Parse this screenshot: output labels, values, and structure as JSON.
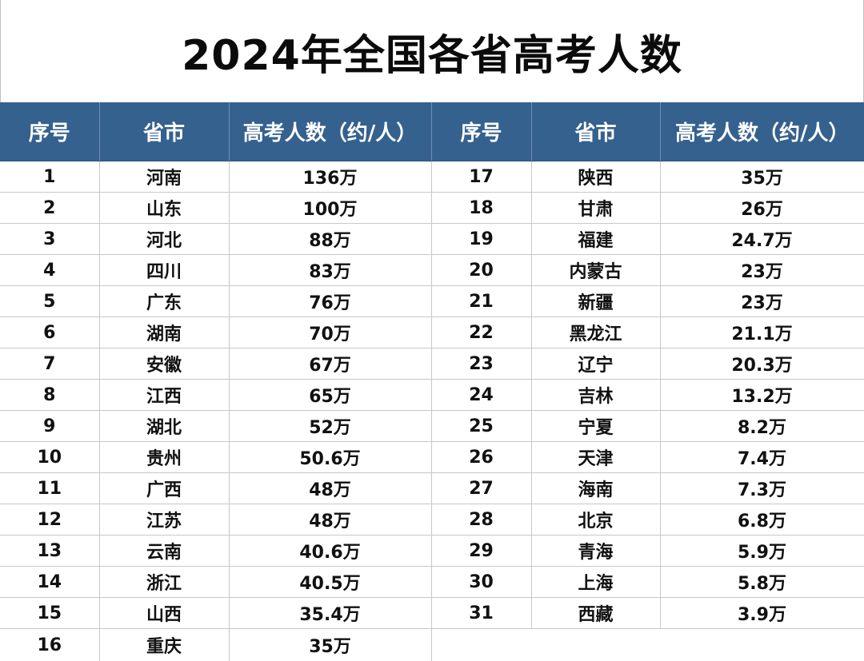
{
  "title": "2024年全国各省高考人数",
  "headers": [
    "序号",
    "省市",
    "高考人数（约/人）",
    "序号",
    "省市",
    "高考人数（约/人）"
  ],
  "rows": [
    {
      "no": "1",
      "province": "河南",
      "count": "136万"
    },
    {
      "no": "2",
      "province": "山东",
      "count": "100万"
    },
    {
      "no": "3",
      "province": "河北",
      "count": "88万"
    },
    {
      "no": "4",
      "province": "四川",
      "count": "83万"
    },
    {
      "no": "5",
      "province": "广东",
      "count": "76万"
    },
    {
      "no": "6",
      "province": "湖南",
      "count": "70万"
    },
    {
      "no": "7",
      "province": "安徽",
      "count": "67万"
    },
    {
      "no": "8",
      "province": "江西",
      "count": "65万"
    },
    {
      "no": "9",
      "province": "湖北",
      "count": "52万"
    },
    {
      "no": "10",
      "province": "贵州",
      "count": "50.6万"
    },
    {
      "no": "11",
      "province": "广西",
      "count": "48万"
    },
    {
      "no": "12",
      "province": "江苏",
      "count": "48万"
    },
    {
      "no": "13",
      "province": "云南",
      "count": "40.6万"
    },
    {
      "no": "14",
      "province": "浙江",
      "count": "40.5万"
    },
    {
      "no": "15",
      "province": "山西",
      "count": "35.4万"
    },
    {
      "no": "16",
      "province": "重庆",
      "count": "35万"
    },
    {
      "no": "17",
      "province": "陕西",
      "count": "35万"
    },
    {
      "no": "18",
      "province": "甘肃",
      "count": "26万"
    },
    {
      "no": "19",
      "province": "福建",
      "count": "24.7万"
    },
    {
      "no": "20",
      "province": "内蒙古",
      "count": "23万"
    },
    {
      "no": "21",
      "province": "新疆",
      "count": "23万"
    },
    {
      "no": "22",
      "province": "黑龙江",
      "count": "21.1万"
    },
    {
      "no": "23",
      "province": "辽宁",
      "count": "20.3万"
    },
    {
      "no": "24",
      "province": "吉林",
      "count": "13.2万"
    },
    {
      "no": "25",
      "province": "宁夏",
      "count": "8.2万"
    },
    {
      "no": "26",
      "province": "天津",
      "count": "7.4万"
    },
    {
      "no": "27",
      "province": "海南",
      "count": "7.3万"
    },
    {
      "no": "28",
      "province": "北京",
      "count": "6.8万"
    },
    {
      "no": "29",
      "province": "青海",
      "count": "5.9万"
    },
    {
      "no": "30",
      "province": "上海",
      "count": "5.8万"
    },
    {
      "no": "31",
      "province": "西藏",
      "count": "3.9万"
    }
  ],
  "colors": {
    "header_bg": "#35618f",
    "header_text": "#ffffff",
    "grid": "#c8c8c8"
  }
}
